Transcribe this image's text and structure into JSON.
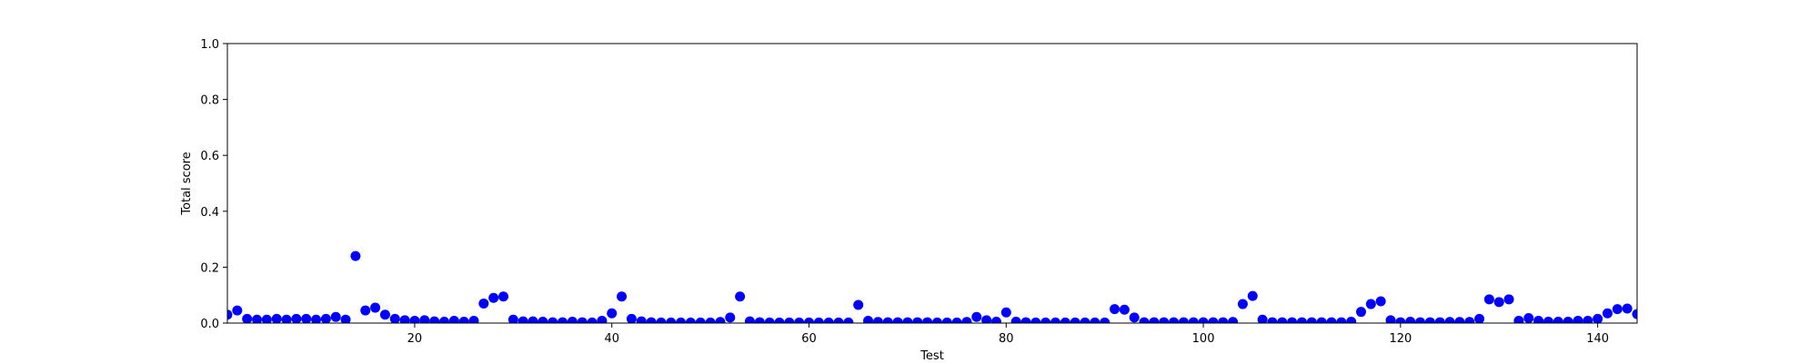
{
  "chart_data": {
    "type": "scatter",
    "xlabel": "Test",
    "ylabel": "Total score",
    "color": "#0000ff",
    "x": [
      1,
      2,
      3,
      4,
      5,
      6,
      7,
      8,
      9,
      10,
      11,
      12,
      13,
      14,
      15,
      16,
      17,
      18,
      19,
      20,
      21,
      22,
      23,
      24,
      25,
      26,
      27,
      28,
      29,
      30,
      31,
      32,
      33,
      34,
      35,
      36,
      37,
      38,
      39,
      40,
      41,
      42,
      43,
      44,
      45,
      46,
      47,
      48,
      49,
      50,
      51,
      52,
      53,
      54,
      55,
      56,
      57,
      58,
      59,
      60,
      61,
      62,
      63,
      64,
      65,
      66,
      67,
      68,
      69,
      70,
      71,
      72,
      73,
      74,
      75,
      76,
      77,
      78,
      79,
      80,
      81,
      82,
      83,
      84,
      85,
      86,
      87,
      88,
      89,
      90,
      91,
      92,
      93,
      94,
      95,
      96,
      97,
      98,
      99,
      100,
      101,
      102,
      103,
      104,
      105,
      106,
      107,
      108,
      109,
      110,
      111,
      112,
      113,
      114,
      115,
      116,
      117,
      118,
      119,
      120,
      121,
      122,
      123,
      124,
      125,
      126,
      127,
      128,
      129,
      130,
      131,
      132,
      133,
      134,
      135,
      136,
      137,
      138,
      139,
      140,
      141,
      142,
      143,
      144
    ],
    "values": [
      0.03,
      0.045,
      0.015,
      0.012,
      0.012,
      0.015,
      0.012,
      0.015,
      0.015,
      0.012,
      0.015,
      0.022,
      0.012,
      0.24,
      0.045,
      0.055,
      0.03,
      0.015,
      0.01,
      0.008,
      0.01,
      0.006,
      0.005,
      0.008,
      0.005,
      0.008,
      0.07,
      0.09,
      0.095,
      0.012,
      0.006,
      0.006,
      0.005,
      0.003,
      0.003,
      0.005,
      0.003,
      0.002,
      0.008,
      0.035,
      0.095,
      0.015,
      0.006,
      0.003,
      0.002,
      0.002,
      0.002,
      0.002,
      0.002,
      0.002,
      0.004,
      0.02,
      0.095,
      0.006,
      0.003,
      0.002,
      0.002,
      0.002,
      0.002,
      0.002,
      0.002,
      0.002,
      0.002,
      0.002,
      0.065,
      0.008,
      0.004,
      0.003,
      0.003,
      0.003,
      0.003,
      0.003,
      0.002,
      0.002,
      0.002,
      0.004,
      0.022,
      0.01,
      0.005,
      0.038,
      0.005,
      0.003,
      0.002,
      0.002,
      0.002,
      0.002,
      0.002,
      0.002,
      0.002,
      0.002,
      0.05,
      0.048,
      0.02,
      0.003,
      0.003,
      0.003,
      0.003,
      0.003,
      0.003,
      0.003,
      0.003,
      0.003,
      0.004,
      0.068,
      0.097,
      0.012,
      0.003,
      0.003,
      0.003,
      0.003,
      0.003,
      0.003,
      0.003,
      0.003,
      0.005,
      0.04,
      0.068,
      0.078,
      0.01,
      0.003,
      0.005,
      0.003,
      0.003,
      0.003,
      0.004,
      0.004,
      0.004,
      0.015,
      0.085,
      0.075,
      0.085,
      0.008,
      0.018,
      0.008,
      0.005,
      0.005,
      0.005,
      0.008,
      0.008,
      0.015,
      0.035,
      0.05,
      0.052,
      0.032
    ],
    "xlim": [
      1,
      144
    ],
    "xticks": [
      20,
      40,
      60,
      80,
      100,
      120,
      140
    ],
    "ylim": [
      0,
      1
    ],
    "yticks": [
      {
        "value": 0,
        "label": "0.0"
      },
      0.2,
      0.4,
      0.6,
      0.8,
      {
        "value": 1,
        "label": "1.0"
      }
    ]
  }
}
